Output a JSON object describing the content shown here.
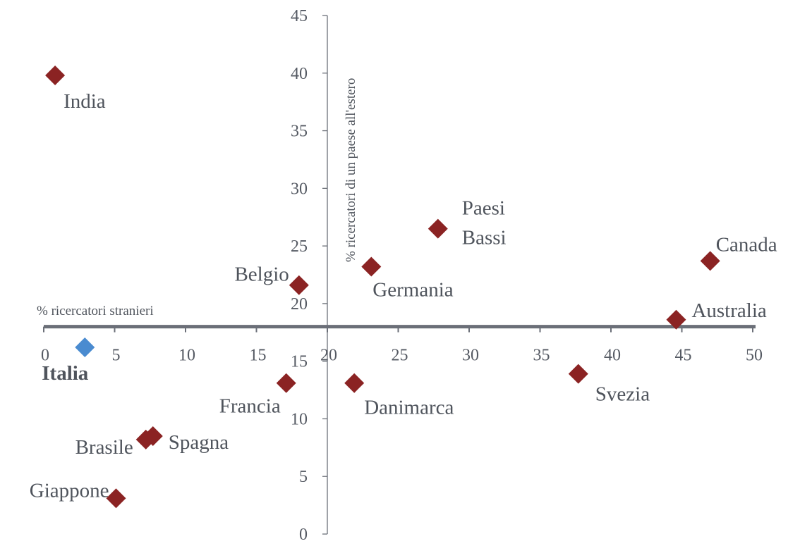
{
  "chart_data": {
    "type": "scatter",
    "xlabel": "% ricercatori stranieri",
    "ylabel": "% ricercatori di un paese all'estero",
    "xlim": [
      0,
      50
    ],
    "ylim": [
      0,
      45
    ],
    "x_ticks": [
      "0",
      "5",
      "10",
      "15",
      "20",
      "25",
      "30",
      "35",
      "40",
      "45",
      "50"
    ],
    "y_ticks": [
      "0",
      "5",
      "10",
      "15",
      "20",
      "25",
      "30",
      "35",
      "40",
      "45"
    ],
    "x_axis_crosses_y_at": 18,
    "y_axis_crosses_x_at": 20,
    "grid": false,
    "colors": {
      "default": "#8b2323",
      "highlight": "#4a8bd0",
      "axis": "#6b6f78"
    },
    "points": [
      {
        "label": "India",
        "x": 0.8,
        "y": 39.8
      },
      {
        "label": "Paesi Bassi",
        "x": 27.8,
        "y": 26.5
      },
      {
        "label": "Canada",
        "x": 47,
        "y": 23.7
      },
      {
        "label": "Germania",
        "x": 23.1,
        "y": 23.2
      },
      {
        "label": "Belgio",
        "x": 18,
        "y": 21.6
      },
      {
        "label": "Australia",
        "x": 44.6,
        "y": 18.6
      },
      {
        "label": "Italia",
        "x": 2.9,
        "y": 16.2,
        "highlight": true
      },
      {
        "label": "Svezia",
        "x": 37.7,
        "y": 13.9
      },
      {
        "label": "Francia",
        "x": 17.1,
        "y": 13.1
      },
      {
        "label": "Danimarca",
        "x": 21.9,
        "y": 13.1
      },
      {
        "label": "Spagna",
        "x": 7.7,
        "y": 8.5
      },
      {
        "label": "Brasile",
        "x": 7.2,
        "y": 8.2
      },
      {
        "label": "Giappone",
        "x": 5.1,
        "y": 3.1
      }
    ]
  }
}
